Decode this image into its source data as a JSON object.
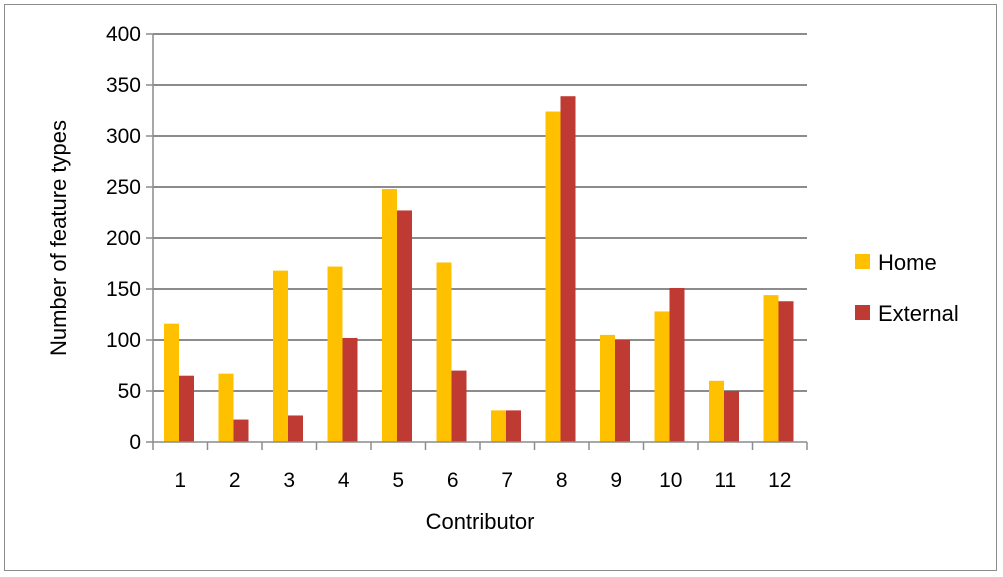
{
  "chart_data": {
    "type": "bar",
    "title": "",
    "xlabel": "Contributor",
    "ylabel": "Number of feature types",
    "categories": [
      "1",
      "2",
      "3",
      "4",
      "5",
      "6",
      "7",
      "8",
      "9",
      "10",
      "11",
      "12"
    ],
    "ylim": [
      0,
      400
    ],
    "yticks": [
      "0",
      "50",
      "100",
      "150",
      "200",
      "250",
      "300",
      "350",
      "400"
    ],
    "grid": true,
    "legend_position": "right",
    "series": [
      {
        "name": "Home",
        "color": "#FFC000",
        "values": [
          116,
          67,
          168,
          172,
          248,
          176,
          31,
          324,
          105,
          128,
          60,
          144
        ]
      },
      {
        "name": "External",
        "color": "#BE3A32",
        "values": [
          65,
          22,
          26,
          102,
          227,
          70,
          31,
          339,
          100,
          151,
          50,
          138
        ]
      }
    ]
  }
}
